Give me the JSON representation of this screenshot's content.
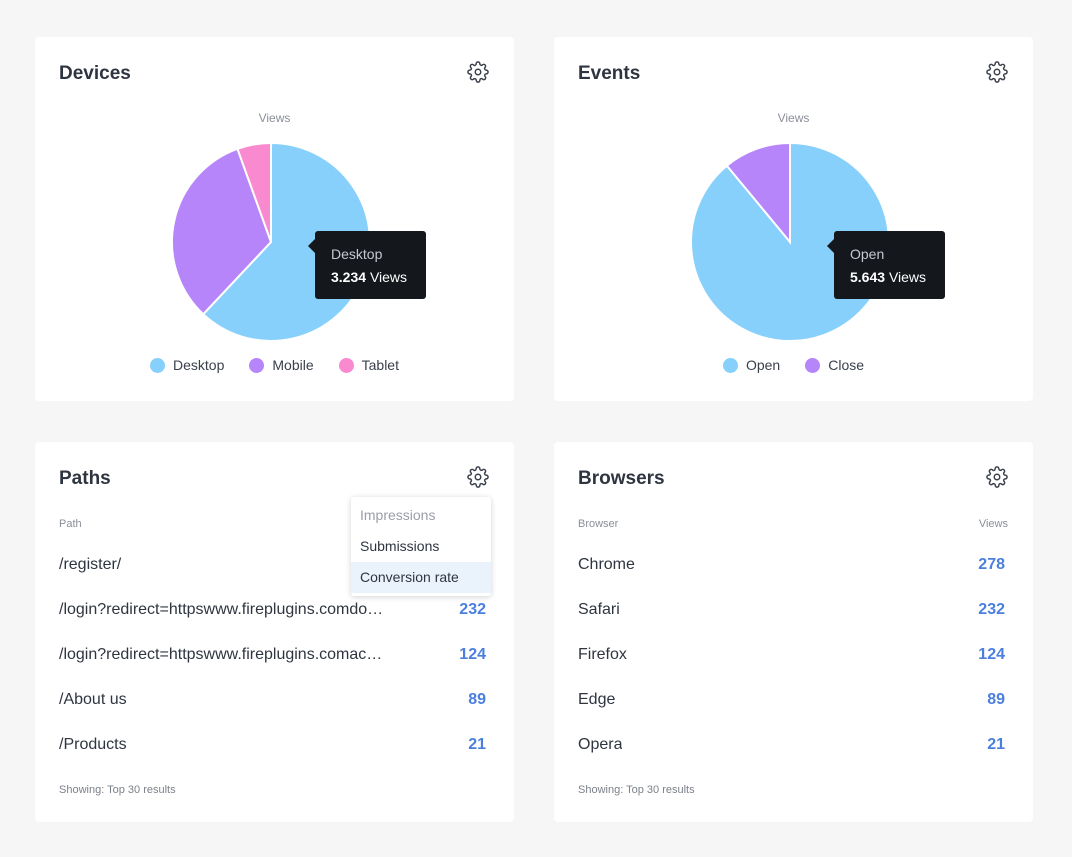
{
  "devices": {
    "title": "Devices",
    "pie_label": "Views",
    "tooltip": {
      "name": "Desktop",
      "value": "3.234",
      "unit": "Views"
    },
    "legend": [
      {
        "label": "Desktop",
        "color": "#87d0fb"
      },
      {
        "label": "Mobile",
        "color": "#b685f9"
      },
      {
        "label": "Tablet",
        "color": "#f98ad0"
      }
    ],
    "chart_data": {
      "type": "pie",
      "categories": [
        "Desktop",
        "Mobile",
        "Tablet"
      ],
      "values": [
        62,
        32.5,
        5.5
      ],
      "colors": [
        "#87d0fb",
        "#b685f9",
        "#f98ad0"
      ]
    }
  },
  "events": {
    "title": "Events",
    "pie_label": "Views",
    "tooltip": {
      "name": "Open",
      "value": "5.643",
      "unit": "Views"
    },
    "legend": [
      {
        "label": "Open",
        "color": "#87d0fb"
      },
      {
        "label": "Close",
        "color": "#b685f9"
      }
    ],
    "chart_data": {
      "type": "pie",
      "categories": [
        "Open",
        "Close"
      ],
      "values": [
        89,
        11
      ],
      "colors": [
        "#87d0fb",
        "#b685f9"
      ]
    }
  },
  "paths": {
    "title": "Paths",
    "column_header": "Path",
    "rows": [
      {
        "name": "/register/",
        "value": ""
      },
      {
        "name": "/login?redirect=httpswww.fireplugins.comdo…",
        "value": "232"
      },
      {
        "name": "/login?redirect=httpswww.fireplugins.comac…",
        "value": "124"
      },
      {
        "name": "/About us",
        "value": "89"
      },
      {
        "name": "/Products",
        "value": "21"
      }
    ],
    "footer": "Showing: Top 30 results",
    "dropdown": {
      "items": [
        {
          "label": "Impressions",
          "state": "disabled"
        },
        {
          "label": "Submissions",
          "state": "normal"
        },
        {
          "label": "Conversion rate",
          "state": "active"
        }
      ]
    }
  },
  "browsers": {
    "title": "Browsers",
    "column_header": "Browser",
    "value_header": "Views",
    "rows": [
      {
        "name": "Chrome",
        "value": "278"
      },
      {
        "name": "Safari",
        "value": "232"
      },
      {
        "name": "Firefox",
        "value": "124"
      },
      {
        "name": "Edge",
        "value": "89"
      },
      {
        "name": "Opera",
        "value": "21"
      }
    ],
    "footer": "Showing: Top 30 results"
  },
  "icons": {
    "settings": "gear-icon"
  },
  "colors": {
    "accent_value": "#4a7fde",
    "tooltip_bg": "#14171c"
  }
}
